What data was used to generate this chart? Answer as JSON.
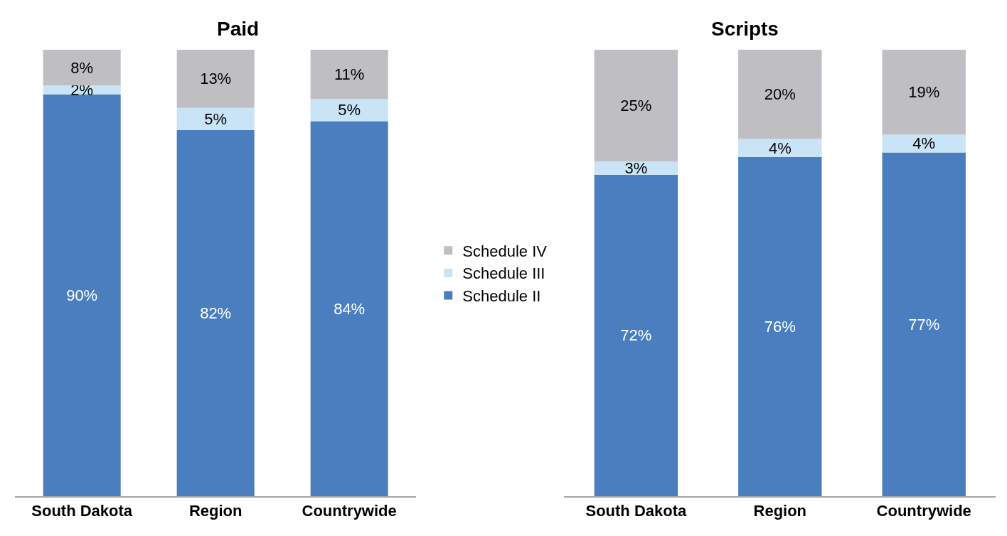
{
  "chart_data": [
    {
      "type": "bar",
      "title": "Paid",
      "stacked": true,
      "categories": [
        "South Dakota",
        "Region",
        "Countrywide"
      ],
      "ylim": [
        0,
        100
      ],
      "tick_labels": "x",
      "legend": "right",
      "series": [
        {
          "name": "Schedule II",
          "color": "#4a7ebf",
          "values": [
            90,
            82,
            84
          ],
          "value_labels": [
            "90%",
            "82%",
            "84%"
          ]
        },
        {
          "name": "Schedule III",
          "color": "#c9e4f6",
          "values": [
            2,
            5,
            5
          ],
          "value_labels": [
            "2%",
            "5%",
            "5%"
          ]
        },
        {
          "name": "Schedule IV",
          "color": "#bfbfc3",
          "values": [
            8,
            13,
            11
          ],
          "value_labels": [
            "8%",
            "13%",
            "11%"
          ]
        }
      ]
    },
    {
      "type": "bar",
      "title": "Scripts",
      "stacked": true,
      "categories": [
        "South Dakota",
        "Region",
        "Countrywide"
      ],
      "ylim": [
        0,
        100
      ],
      "tick_labels": "x",
      "series": [
        {
          "name": "Schedule II",
          "color": "#4a7ebf",
          "values": [
            72,
            76,
            77
          ],
          "value_labels": [
            "72%",
            "76%",
            "77%"
          ]
        },
        {
          "name": "Schedule III",
          "color": "#c9e4f6",
          "values": [
            3,
            4,
            4
          ],
          "value_labels": [
            "3%",
            "4%",
            "4%"
          ]
        },
        {
          "name": "Schedule IV",
          "color": "#bfbfc3",
          "values": [
            25,
            20,
            19
          ],
          "value_labels": [
            "25%",
            "20%",
            "19%"
          ]
        }
      ]
    }
  ]
}
